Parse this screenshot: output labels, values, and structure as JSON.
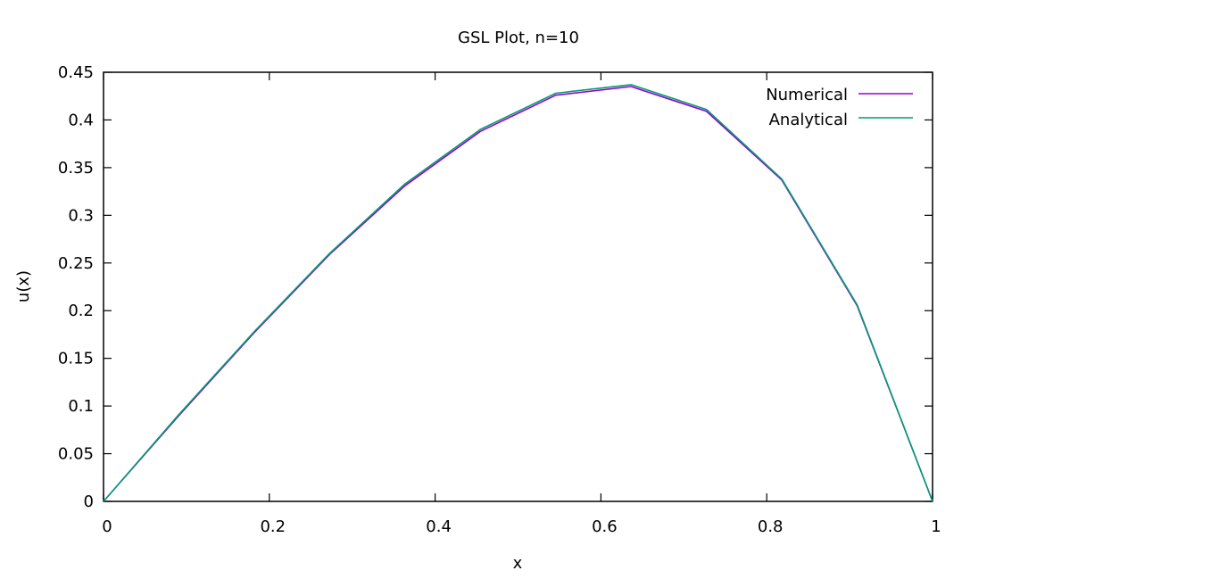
{
  "chart_data": {
    "type": "line",
    "title": "GSL Plot, n=10",
    "xlabel": "x",
    "ylabel": "u(x)",
    "xlim": [
      0,
      1
    ],
    "ylim": [
      0,
      0.45
    ],
    "xticks": [
      {
        "value": 0,
        "label": "0"
      },
      {
        "value": 0.2,
        "label": "0.2"
      },
      {
        "value": 0.4,
        "label": "0.4"
      },
      {
        "value": 0.6,
        "label": "0.6"
      },
      {
        "value": 0.8,
        "label": "0.8"
      },
      {
        "value": 1,
        "label": "1"
      }
    ],
    "yticks": [
      {
        "value": 0,
        "label": "0"
      },
      {
        "value": 0.05,
        "label": "0.05"
      },
      {
        "value": 0.1,
        "label": "0.1"
      },
      {
        "value": 0.15,
        "label": "0.15"
      },
      {
        "value": 0.2,
        "label": "0.2"
      },
      {
        "value": 0.25,
        "label": "0.25"
      },
      {
        "value": 0.3,
        "label": "0.3"
      },
      {
        "value": 0.35,
        "label": "0.35"
      },
      {
        "value": 0.4,
        "label": "0.4"
      },
      {
        "value": 0.45,
        "label": "0.45"
      }
    ],
    "grid": false,
    "legend_position": "top-right",
    "series": [
      {
        "name": "Numerical",
        "color": "#9400d3",
        "x": [
          0,
          0.0909,
          0.1818,
          0.2727,
          0.3636,
          0.4545,
          0.5455,
          0.6364,
          0.7273,
          0.8182,
          0.9091,
          1.0
        ],
        "y": [
          0,
          0.09,
          0.177,
          0.259,
          0.331,
          0.388,
          0.426,
          0.435,
          0.409,
          0.337,
          0.205,
          0
        ]
      },
      {
        "name": "Analytical",
        "color": "#009e73",
        "x": [
          0,
          0.0909,
          0.1818,
          0.2727,
          0.3636,
          0.4545,
          0.5455,
          0.6364,
          0.7273,
          0.8182,
          0.9091,
          1.0
        ],
        "y": [
          0,
          0.091,
          0.178,
          0.26,
          0.333,
          0.39,
          0.428,
          0.437,
          0.411,
          0.338,
          0.206,
          0
        ]
      }
    ]
  }
}
